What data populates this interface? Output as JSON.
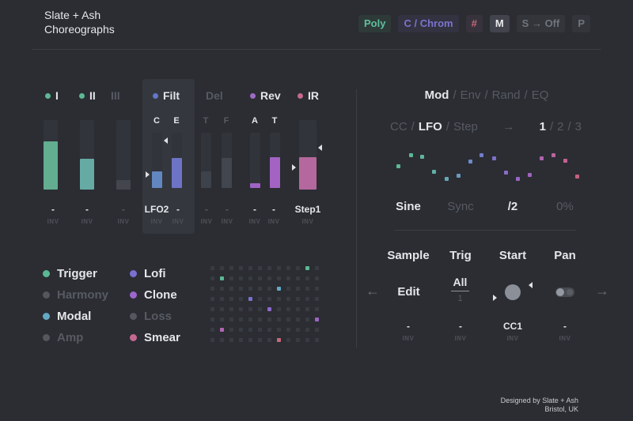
{
  "app": {
    "title_line1": "Slate + Ash",
    "title_line2": "Choreographs"
  },
  "labels": {
    "sep": "/",
    "arrow": "→",
    "inv": "INV"
  },
  "header_buttons": [
    {
      "label": "Poly",
      "fg": "#5fbf9f",
      "bg": "#2e3a37"
    },
    {
      "label": "C / Chrom",
      "fg": "#7b74ce",
      "bg": "#333240"
    },
    {
      "label": "#",
      "fg": "#c4697c",
      "bg": "#37323b"
    },
    {
      "label": "M",
      "fg": "#e8e9eb",
      "bg": "#41444c"
    },
    {
      "label": "S → Off",
      "fg": "#70747c",
      "bg": "#33353b"
    },
    {
      "label": "P",
      "fg": "#70747c",
      "bg": "#33353b"
    }
  ],
  "channels": [
    {
      "label": "I",
      "dot": "#5cb894",
      "active": true
    },
    {
      "label": "II",
      "dot": "#5cb894",
      "active": true
    },
    {
      "label": "III",
      "dot": null,
      "active": false
    },
    {
      "label": "Filt",
      "dot": "#6478c8",
      "active": true
    },
    {
      "label": "Del",
      "dot": null,
      "active": false
    },
    {
      "label": "Rev",
      "dot": "#9d6ac4",
      "active": true
    },
    {
      "label": "IR",
      "dot": "#c4698f",
      "active": true
    }
  ],
  "faders": [
    {
      "cap": null,
      "cap_active": false,
      "pct": 69,
      "color": "#63ad90",
      "value": "-",
      "value_active": true
    },
    {
      "cap": null,
      "cap_active": false,
      "pct": 44,
      "color": "#66aaa4",
      "value": "-",
      "value_active": true
    },
    {
      "cap": null,
      "cap_active": false,
      "pct": 14,
      "color": "#43464d",
      "value": "-",
      "value_active": false
    },
    {
      "cap": "C",
      "cap_active": true,
      "pct": 30,
      "color": "#6287c0",
      "value": "LFO2",
      "value_active": true
    },
    {
      "cap": "E",
      "cap_active": true,
      "pct": 54,
      "color": "#6d74c6",
      "value": "-",
      "value_active": true
    },
    {
      "cap": "T",
      "cap_active": false,
      "pct": 30,
      "color": "#3e424a",
      "value": "-",
      "value_active": false
    },
    {
      "cap": "F",
      "cap_active": false,
      "pct": 54,
      "color": "#42464e",
      "value": "-",
      "value_active": false
    },
    {
      "cap": "A",
      "cap_active": true,
      "pct": 8,
      "color": "#9f63c4",
      "value": "-",
      "value_active": true
    },
    {
      "cap": "T",
      "cap_active": true,
      "pct": 56,
      "color": "#a263c2",
      "value": "-",
      "value_active": true
    },
    {
      "cap": null,
      "cap_active": false,
      "pct": 47,
      "color": "#b4689d",
      "value": "Step1",
      "value_active": true
    }
  ],
  "mod": {
    "tabs": [
      {
        "label": "Mod",
        "active": true
      },
      {
        "label": "Env",
        "active": false
      },
      {
        "label": "Rand",
        "active": false
      },
      {
        "label": "EQ",
        "active": false
      }
    ],
    "sources": [
      {
        "label": "CC",
        "active": false
      },
      {
        "label": "LFO",
        "active": true
      },
      {
        "label": "Step",
        "active": false
      }
    ],
    "slots": [
      {
        "label": "1",
        "active": true
      },
      {
        "label": "2",
        "active": false
      },
      {
        "label": "3",
        "active": false
      }
    ],
    "params": [
      {
        "label": "Sine",
        "active": true
      },
      {
        "label": "Sync",
        "active": false
      },
      {
        "label": "/2",
        "active": true
      },
      {
        "label": "0%",
        "active": false
      }
    ],
    "lfo_dots": [
      [
        21,
        28,
        "#5cb894"
      ],
      [
        37,
        14,
        "#5cb894"
      ],
      [
        51,
        16,
        "#5eb69c"
      ],
      [
        66,
        35,
        "#60b0a6"
      ],
      [
        82,
        44,
        "#66a8b2"
      ],
      [
        97,
        40,
        "#6c99c0"
      ],
      [
        112,
        22,
        "#6f8ac6"
      ],
      [
        126,
        14,
        "#727cc9"
      ],
      [
        142,
        18,
        "#7d72c9"
      ],
      [
        157,
        36,
        "#8a6cc6"
      ],
      [
        172,
        44,
        "#9766c3"
      ],
      [
        187,
        39,
        "#a164bd"
      ],
      [
        202,
        18,
        "#ae63ae"
      ],
      [
        217,
        14,
        "#bb639e"
      ],
      [
        232,
        21,
        "#c36292"
      ],
      [
        247,
        41,
        "#c56180"
      ]
    ]
  },
  "sampler": {
    "columns": [
      "Sample",
      "Trig",
      "Start",
      "Pan"
    ],
    "nav_left": "←",
    "nav_right": "→",
    "edit_label": "Edit",
    "trig_mode": "All",
    "trig_count": "1",
    "values": [
      {
        "label": "-",
        "active": true
      },
      {
        "label": "-",
        "active": true
      },
      {
        "label": "CC1",
        "active": true
      },
      {
        "label": "-",
        "active": true
      }
    ]
  },
  "legend": [
    {
      "label": "Trigger",
      "color": "#5cb894",
      "active": true
    },
    {
      "label": "Harmony",
      "color": "#54575e",
      "active": false
    },
    {
      "label": "Modal",
      "color": "#64a9c4",
      "active": true
    },
    {
      "label": "Amp",
      "color": "#54575e",
      "active": false
    },
    {
      "label": "Lofi",
      "color": "#7a70d0",
      "active": true
    },
    {
      "label": "Clone",
      "color": "#9c66cc",
      "active": true
    },
    {
      "label": "Loss",
      "color": "#54575e",
      "active": false
    },
    {
      "label": "Smear",
      "color": "#c4688f",
      "active": true
    }
  ],
  "grid": {
    "cols": 12,
    "rows": 8,
    "base": "#383b41",
    "cells": [
      {
        "r": 0,
        "c": 10,
        "color": "#5cb894"
      },
      {
        "r": 1,
        "c": 1,
        "color": "#5cb894"
      },
      {
        "r": 2,
        "c": 7,
        "color": "#64a9c4"
      },
      {
        "r": 3,
        "c": 4,
        "color": "#7a70d0"
      },
      {
        "r": 4,
        "c": 6,
        "color": "#8d68cc"
      },
      {
        "r": 5,
        "c": 11,
        "color": "#9c66c4"
      },
      {
        "r": 6,
        "c": 1,
        "color": "#b464b4"
      },
      {
        "r": 7,
        "c": 7,
        "color": "#c4687a"
      }
    ]
  },
  "footer": {
    "line1": "Designed by Slate + Ash",
    "line2": "Bristol, UK"
  }
}
